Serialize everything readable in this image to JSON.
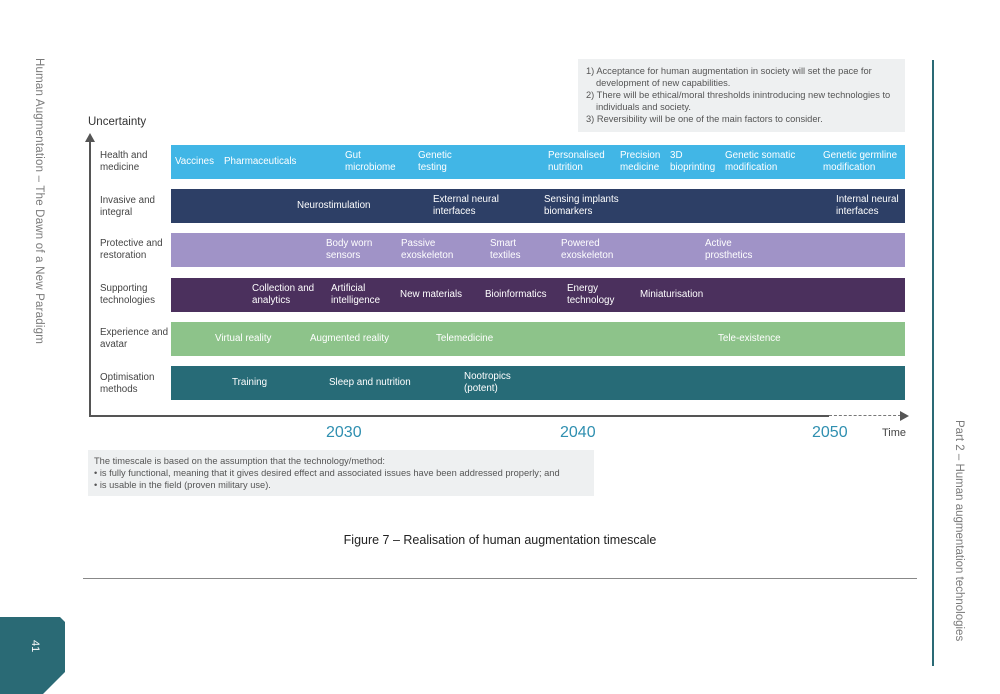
{
  "side_left_text": "Human Augmentation – The Dawn of a New Paradigm",
  "side_right_text": "Part 2 – Human augmentation technologies",
  "page_number": "41",
  "notes": [
    "1) Acceptance for human augmentation in society will set the pace for development of new capabilities.",
    "2) There will be ethical/moral thresholds inintroducing new technologies to individuals and society.",
    "3) Reversibility will be one of the main factors to consider."
  ],
  "y_axis_label": "Uncertainty",
  "x_axis_label": "Time",
  "years": [
    "2030",
    "2040",
    "2050"
  ],
  "rows": [
    {
      "label": "Health and medicine",
      "color": "#41b6e6",
      "items": [
        "Vaccines",
        "Pharmaceuticals",
        "Gut microbiome",
        "Genetic testing",
        "Personalised nutrition",
        "Precision medicine",
        "3D bioprinting",
        "Genetic somatic modification",
        "Genetic germline modification"
      ]
    },
    {
      "label": "Invasive and integral",
      "color": "#2d3f66",
      "items": [
        "Neurostimulation",
        "External neural interfaces",
        "Sensing implants biomarkers",
        "Internal neural interfaces"
      ]
    },
    {
      "label": "Protective and restoration",
      "color": "#a093c7",
      "items": [
        "Body worn sensors",
        "Passive exoskeleton",
        "Smart textiles",
        "Powered exoskeleton",
        "Active prosthetics"
      ]
    },
    {
      "label": "Supporting technologies",
      "color": "#4b305d",
      "items": [
        "Collection and analytics",
        "Artificial intelligence",
        "New materials",
        "Bioinformatics",
        "Energy technology",
        "Miniaturisation"
      ]
    },
    {
      "label": "Experience and avatar",
      "color": "#8dc38a",
      "items": [
        "Virtual reality",
        "Augmented reality",
        "Telemedicine",
        "Tele-existence"
      ]
    },
    {
      "label": "Optimisation methods",
      "color": "#276b77",
      "items": [
        "Training",
        "Sleep and nutrition",
        "Nootropics (potent)"
      ]
    }
  ],
  "footnote": {
    "intro": "The timescale is based on the assumption that the technology/method:",
    "bullets": [
      "• is fully functional, meaning that it gives desired effect and associated issues have been addressed properly; and",
      "• is usable in the field (proven military use)."
    ]
  },
  "caption": "Figure 7 – Realisation of human augmentation timescale"
}
